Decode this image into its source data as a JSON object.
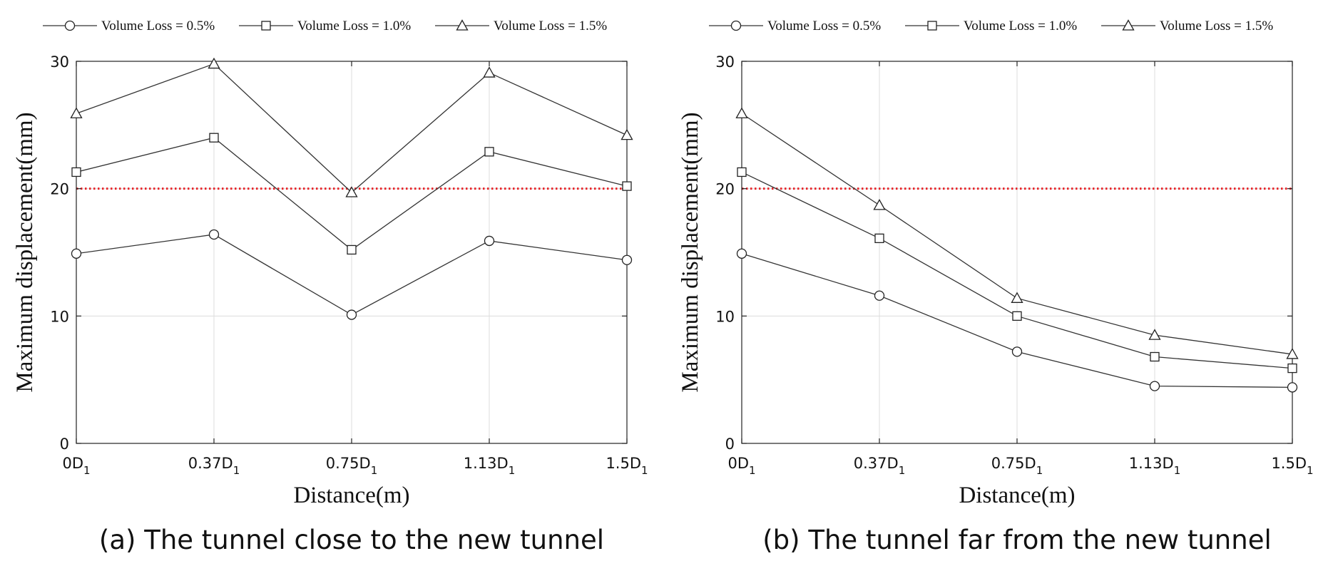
{
  "chart_data": [
    {
      "type": "line",
      "caption": "(a) The tunnel close to the new tunnel",
      "xlabel": "Distance(m)",
      "ylabel": "Maximum displacement(mm)",
      "categories": [
        {
          "main": "0D",
          "sub": "1"
        },
        {
          "main": "0.37D",
          "sub": "1"
        },
        {
          "main": "0.75D",
          "sub": "1"
        },
        {
          "main": "1.13D",
          "sub": "1"
        },
        {
          "main": "1.5D",
          "sub": "1"
        }
      ],
      "ylim": [
        0,
        30
      ],
      "yticks": [
        "0",
        "10",
        "20",
        "30"
      ],
      "grid": true,
      "legend_position": "top",
      "reference_line": {
        "y": 20,
        "color": "#e8262b",
        "style": "dotted"
      },
      "series": [
        {
          "name": "Volume Loss = 0.5%",
          "marker": "circle",
          "values": [
            14.9,
            16.4,
            10.1,
            15.9,
            14.4
          ]
        },
        {
          "name": "Volume Loss = 1.0%",
          "marker": "square",
          "values": [
            21.3,
            24.0,
            15.2,
            22.9,
            20.2
          ]
        },
        {
          "name": "Volume Loss = 1.5%",
          "marker": "triangle",
          "values": [
            25.9,
            29.8,
            19.7,
            29.1,
            24.2
          ]
        }
      ]
    },
    {
      "type": "line",
      "caption": "(b) The tunnel far from the new tunnel",
      "xlabel": "Distance(m)",
      "ylabel": "Maximum displacement(mm)",
      "categories": [
        {
          "main": "0D",
          "sub": "1"
        },
        {
          "main": "0.37D",
          "sub": "1"
        },
        {
          "main": "0.75D",
          "sub": "1"
        },
        {
          "main": "1.13D",
          "sub": "1"
        },
        {
          "main": "1.5D",
          "sub": "1"
        }
      ],
      "ylim": [
        0,
        30
      ],
      "yticks": [
        "0",
        "10",
        "20",
        "30"
      ],
      "grid": true,
      "legend_position": "top",
      "reference_line": {
        "y": 20,
        "color": "#e8262b",
        "style": "dotted"
      },
      "series": [
        {
          "name": "Volume Loss = 0.5%",
          "marker": "circle",
          "values": [
            14.9,
            11.6,
            7.2,
            4.5,
            4.4
          ]
        },
        {
          "name": "Volume Loss = 1.0%",
          "marker": "square",
          "values": [
            21.3,
            16.1,
            10.0,
            6.8,
            5.9
          ]
        },
        {
          "name": "Volume Loss = 1.5%",
          "marker": "triangle",
          "values": [
            25.9,
            18.7,
            11.4,
            8.5,
            7.0
          ]
        }
      ]
    }
  ]
}
